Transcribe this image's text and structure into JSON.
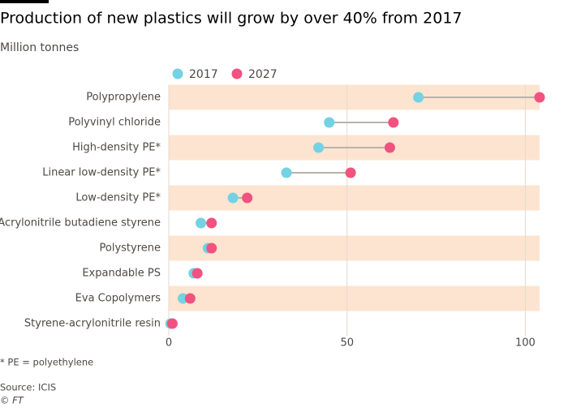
{
  "chart_data": {
    "type": "dumbbell",
    "title": "Production of new plastics will grow by over 40% from 2017",
    "subtitle": "Million tonnes",
    "categories": [
      "Polypropylene",
      "Polyvinyl chloride",
      "High-density PE*",
      "Linear low-density PE*",
      "Low-density PE*",
      "Acrylonitrile butadiene styrene",
      "Polystyrene",
      "Expandable PS",
      "Eva Copolymers",
      "Styrene-acrylonitrile resin"
    ],
    "series": [
      {
        "name": "2017",
        "color": "#73d2e3",
        "values": [
          70,
          45,
          42,
          33,
          18,
          9,
          11,
          7,
          4,
          0.5
        ]
      },
      {
        "name": "2027",
        "color": "#f2527f",
        "values": [
          104,
          63,
          62,
          51,
          22,
          12,
          12,
          8,
          6,
          1
        ]
      }
    ],
    "xlim": [
      0,
      104
    ],
    "xticks": [
      0,
      50,
      100
    ],
    "grid": true,
    "footnote": "* PE = polyethylene",
    "source": "Source: ICIS",
    "credit": "© FT"
  }
}
